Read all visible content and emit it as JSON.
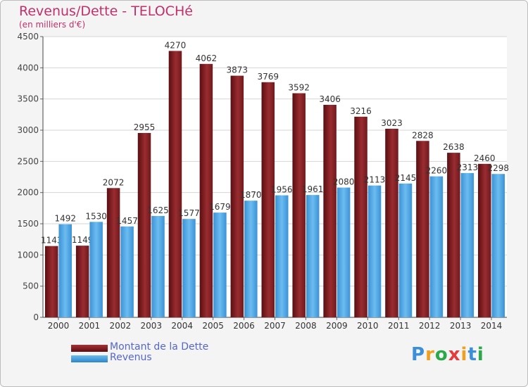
{
  "chart_data": {
    "type": "bar",
    "title": "Revenus/Dette - TELOCHé",
    "subtitle": "(en milliers d'€)",
    "categories": [
      "2000",
      "2001",
      "2002",
      "2003",
      "2004",
      "2005",
      "2006",
      "2007",
      "2008",
      "2009",
      "2010",
      "2011",
      "2012",
      "2013",
      "2014"
    ],
    "series": [
      {
        "name": "Montant de la Dette",
        "color": "#7a1e22",
        "values": [
          1143,
          1149,
          2072,
          2955,
          4270,
          4062,
          3873,
          3769,
          3592,
          3406,
          3216,
          3023,
          2828,
          2638,
          2460
        ],
        "labels": [
          "1143",
          "1149",
          "2072",
          "2955",
          "4270",
          "4062",
          "3873",
          "3769",
          "3592",
          "3406",
          "3216",
          "3023",
          "2828",
          "2638",
          "2460"
        ]
      },
      {
        "name": "Revenus",
        "color": "#4ca3e0",
        "values": [
          1492,
          1530,
          1457,
          1625,
          1577,
          1679,
          1870,
          1956,
          1961,
          2080,
          2113,
          2145,
          2260,
          2313,
          2298
        ],
        "labels": [
          "1492",
          "1530",
          "1457",
          "1625",
          "1577",
          "1679",
          "1870",
          "1956",
          "1961",
          "2080",
          "2113",
          "2145",
          "2260",
          "2313",
          "2298"
        ]
      }
    ],
    "ylim": [
      0,
      4500
    ],
    "yticks": [
      "0",
      "500",
      "1000",
      "1500",
      "2000",
      "2500",
      "3000",
      "3500",
      "4000",
      "4500"
    ],
    "grid": true,
    "legend_position": "bottom-left"
  },
  "logo": {
    "letters": [
      "P",
      "r",
      "o",
      "x",
      "i",
      "t",
      "i"
    ],
    "colors": [
      "#3b8fd9",
      "#f0a020",
      "#2aa84a",
      "#e23c3c",
      "#f0a020",
      "#3b8fd9",
      "#2aa84a"
    ]
  }
}
